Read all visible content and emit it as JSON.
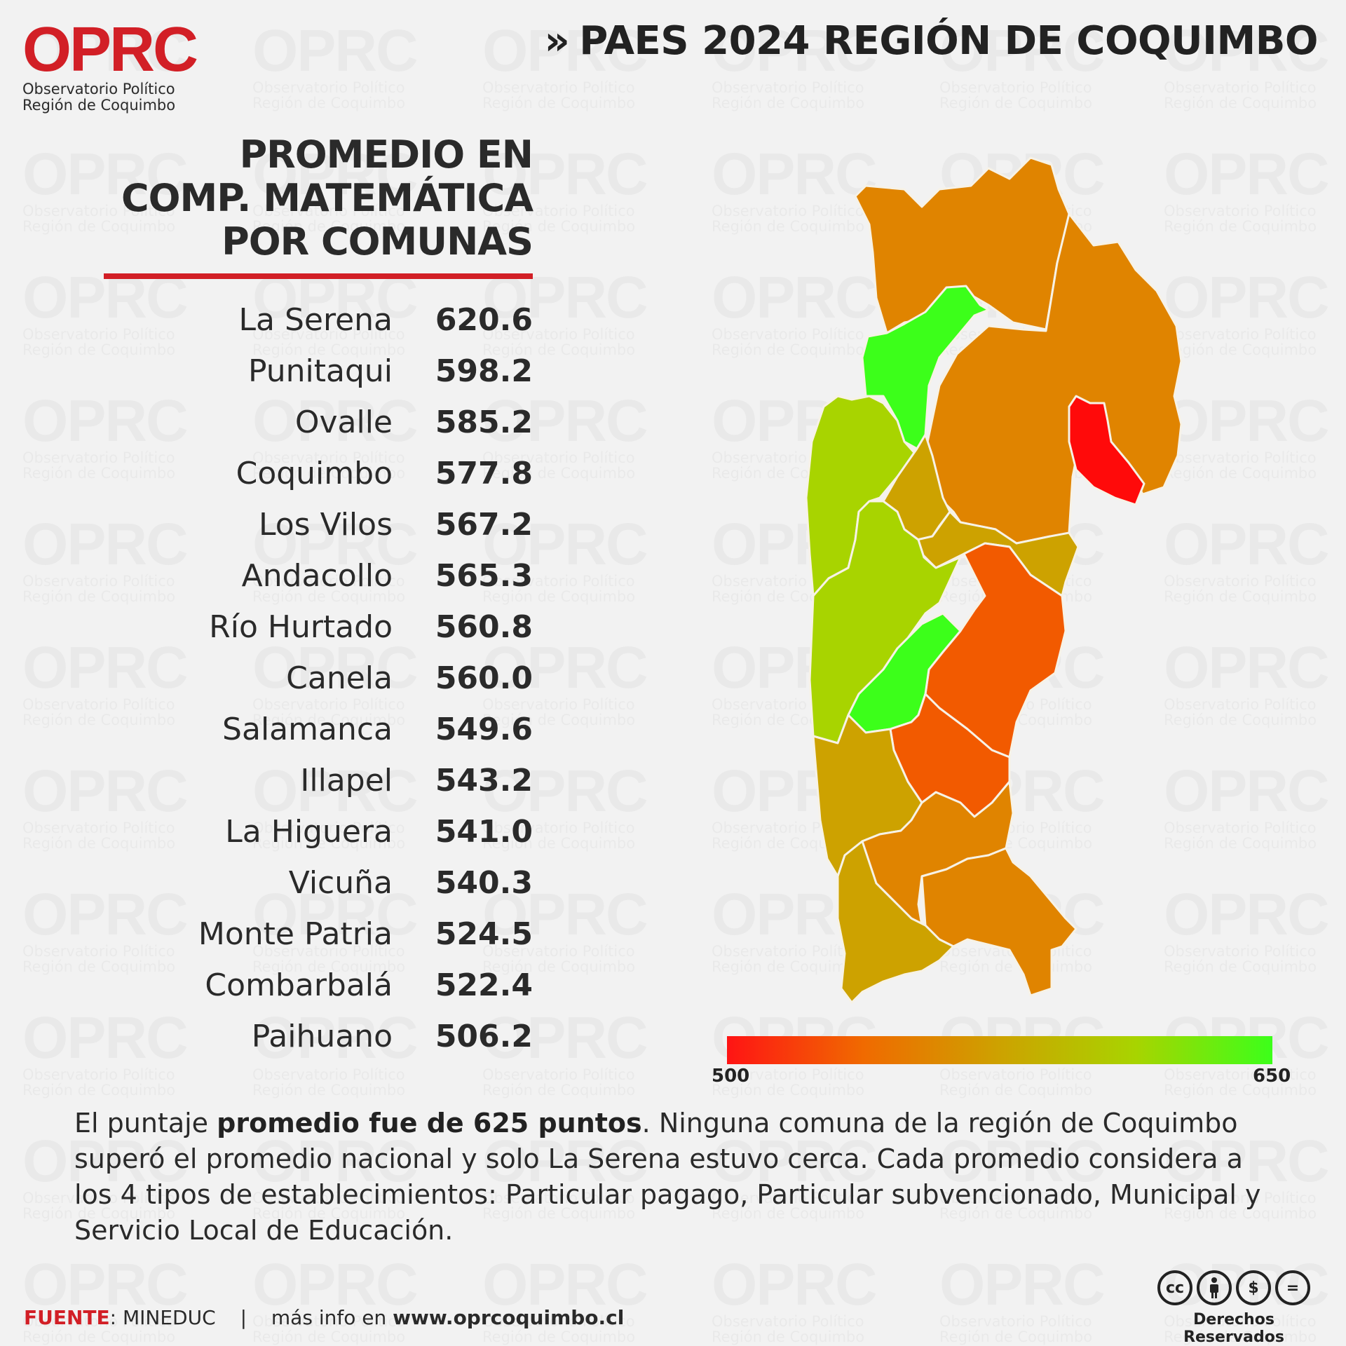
{
  "logo": {
    "mark": "OPRC",
    "line1": "Observatorio Político",
    "line2": "Región de Coquimbo"
  },
  "header": {
    "title": "PAES 2024 REGIÓN DE COQUIMBO",
    "chevron": "»"
  },
  "ranking": {
    "title_lines": [
      "PROMEDIO EN",
      "COMP. MATEMÁTICA",
      "POR COMUNAS"
    ],
    "rows": [
      {
        "name": "La Serena",
        "value": "620.6"
      },
      {
        "name": "Punitaqui",
        "value": "598.2"
      },
      {
        "name": "Ovalle",
        "value": "585.2"
      },
      {
        "name": "Coquimbo",
        "value": "577.8"
      },
      {
        "name": "Los Vilos",
        "value": "567.2"
      },
      {
        "name": "Andacollo",
        "value": "565.3"
      },
      {
        "name": "Río Hurtado",
        "value": "560.8"
      },
      {
        "name": "Canela",
        "value": "560.0"
      },
      {
        "name": "Salamanca",
        "value": "549.6"
      },
      {
        "name": "Illapel",
        "value": "543.2"
      },
      {
        "name": "La Higuera",
        "value": "541.0"
      },
      {
        "name": "Vicuña",
        "value": "540.3"
      },
      {
        "name": "Monte Patria",
        "value": "524.5"
      },
      {
        "name": "Combarbalá",
        "value": "522.4"
      },
      {
        "name": "Paihuano",
        "value": "506.2"
      }
    ]
  },
  "map": {
    "colors": {
      "high": "#3cff1a",
      "mid_high": "#a8d400",
      "mid": "#cda200",
      "mid_low": "#e08400",
      "low": "#f25a00",
      "lowest": "#ff0a0a",
      "border": "#f7f2e6"
    }
  },
  "colorbar": {
    "min": "500",
    "max": "650",
    "min_color": "#ff1414",
    "max_color": "#3cff1a"
  },
  "note": {
    "pre": "El puntaje ",
    "bold": "promedio fue de 625 puntos",
    "post": ". Ninguna comuna de la región de  Coquimbo superó el promedio nacional y solo La Serena estuvo cerca. Cada promedio considera a los 4 tipos de establecimientos: Particular pagago, Particular subvencionado, Municipal y Servicio Local de Educación."
  },
  "footer": {
    "source_label": "FUENTE",
    "source": ": MINEDUC",
    "separator": "|",
    "more_info": "más info en ",
    "url": "www.oprcoquimbo.cl"
  },
  "license": {
    "text": "Derechos Reservados",
    "icons": [
      "cc-icon",
      "by-icon",
      "nc-icon",
      "nd-icon"
    ]
  }
}
